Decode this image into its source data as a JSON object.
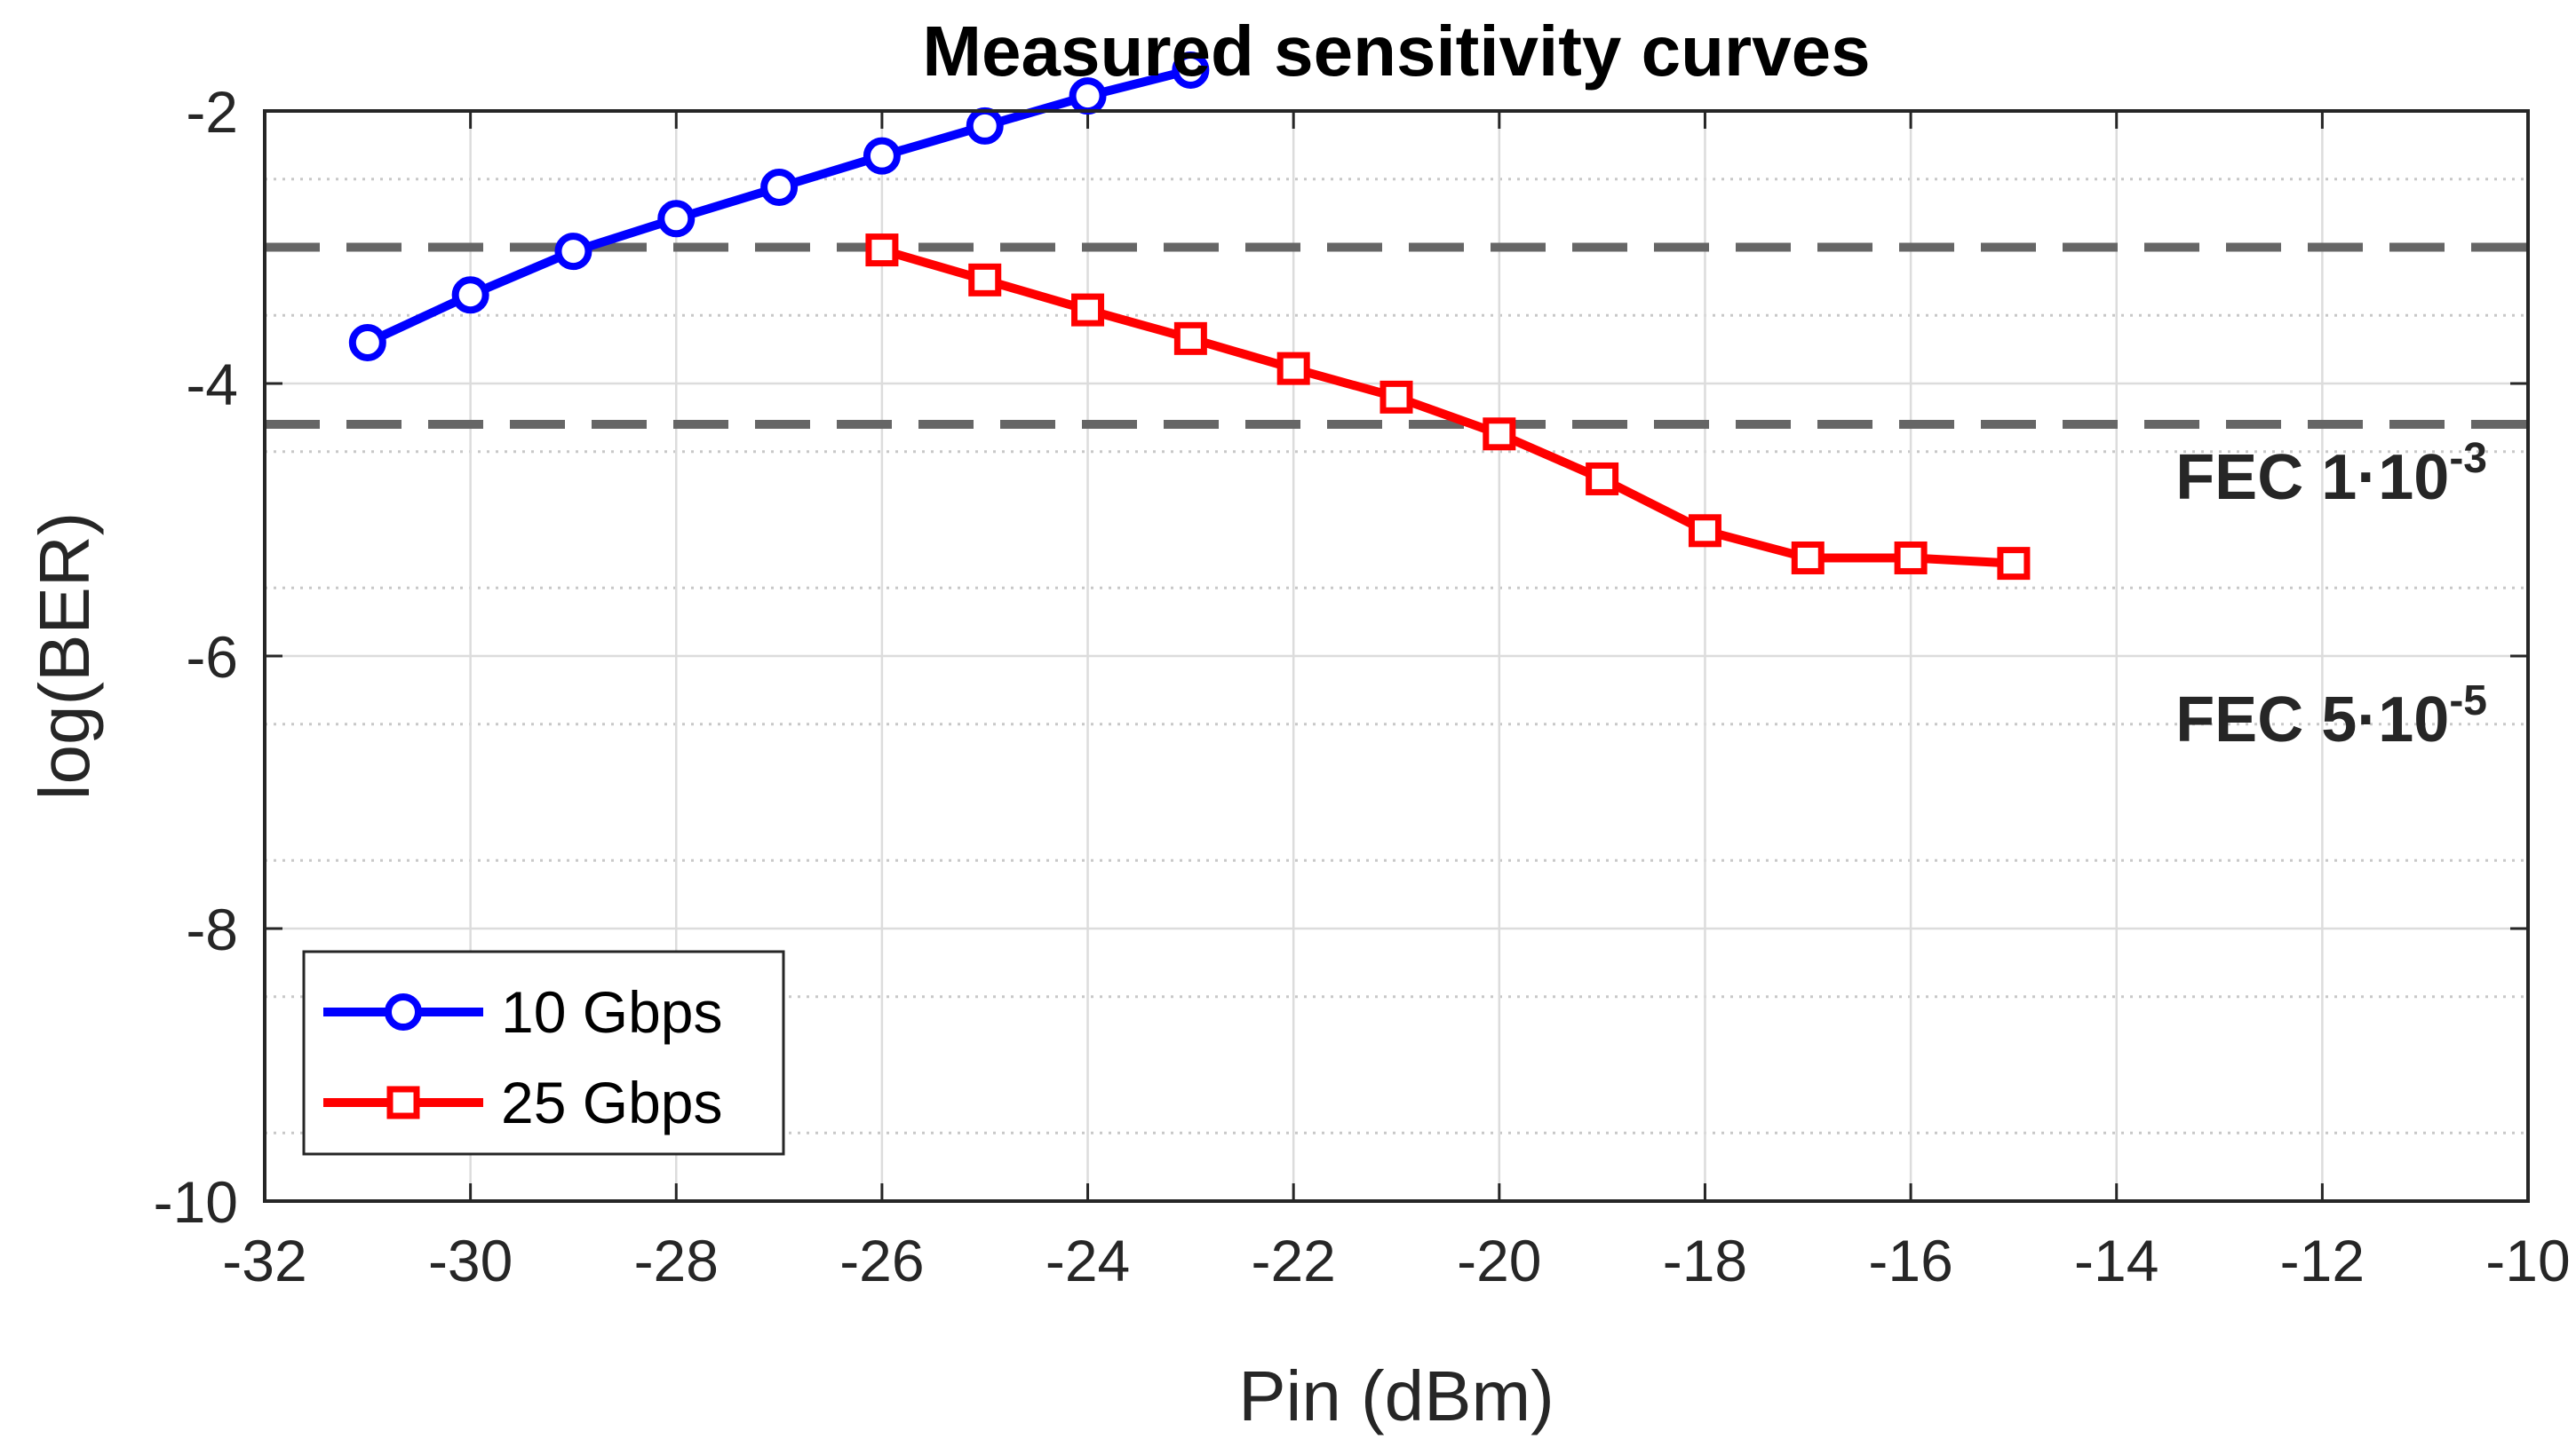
{
  "chart_data": {
    "type": "line",
    "title": "Measured sensitivity curves",
    "xlabel": "Pin (dBm)",
    "ylabel": "log(BER)",
    "xlim": [
      -32,
      -10
    ],
    "ylim": [
      -10,
      -2
    ],
    "xticks": [
      -32,
      -30,
      -28,
      -26,
      -24,
      -22,
      -20,
      -18,
      -16,
      -14,
      -12,
      -10
    ],
    "yticks": [
      -10,
      -8,
      -6,
      -4,
      -2
    ],
    "xtick_labels": [
      "-32",
      "-30",
      "-28",
      "-26",
      "-24",
      "-22",
      "-20",
      "-18",
      "-16",
      "-14",
      "-12",
      "-10"
    ],
    "ytick_labels": [
      "-10",
      "-8",
      "-6",
      "-4",
      "-2"
    ],
    "grid": true,
    "legend_position": "bottom-left",
    "series": [
      {
        "name": "10 Gbps",
        "color": "#0000ff",
        "marker": "circle",
        "x": [
          -31,
          -30,
          -29,
          -28,
          -27,
          -26,
          -25,
          -24,
          -23
        ],
        "y": [
          -3.7,
          -3.35,
          -3.03,
          -2.79,
          -2.56,
          -2.33,
          -2.11,
          -1.89,
          -1.7
        ]
      },
      {
        "name": "25 Gbps",
        "color": "#ff0000",
        "marker": "square",
        "x": [
          -26,
          -25,
          -24,
          -23,
          -22,
          -21,
          -20,
          -19,
          -18,
          -17,
          -16,
          -15
        ],
        "y": [
          -3.02,
          -3.24,
          -3.46,
          -3.67,
          -3.89,
          -4.1,
          -4.37,
          -4.7,
          -5.08,
          -5.28,
          -5.28,
          -5.32
        ]
      }
    ],
    "threshold_lines": [
      {
        "label_base": "FEC 1·10",
        "label_exp": "-3",
        "y": -3
      },
      {
        "label_base": "FEC 5·10",
        "label_exp": "-5",
        "y": -4.3
      }
    ],
    "threshold_color": "#666666"
  }
}
